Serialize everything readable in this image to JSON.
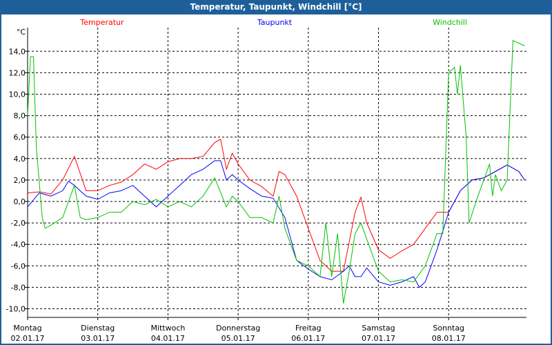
{
  "window_title": "Temperatur, Taupunkt, Windchill [°C]",
  "chart_data": {
    "type": "line",
    "title": "Temperatur, Taupunkt, Windchill [°C]",
    "ylabel": "°C",
    "xlabel": "",
    "ylim": [
      -11.2,
      16.4
    ],
    "xlim_hours": [
      0,
      172
    ],
    "grid": true,
    "yticks": [
      14,
      12,
      10,
      8,
      6,
      4,
      2,
      0,
      -2,
      -4,
      -6,
      -8,
      -10
    ],
    "ytick_labels": [
      "14,0",
      "12,0",
      "10,0",
      "8,0",
      "6,0",
      "4,0",
      "2,0",
      "0,0",
      "-2,0",
      "-4,0",
      "-6,0",
      "-8,0",
      "-10,0"
    ],
    "xticks": [
      {
        "day": "Montag",
        "date": "02.01.17"
      },
      {
        "day": "Dienstag",
        "date": "03.01.17"
      },
      {
        "day": "Mittwoch",
        "date": "04.01.17"
      },
      {
        "day": "Donnerstag",
        "date": "05.01.17"
      },
      {
        "day": "Freitag",
        "date": "06.01.17"
      },
      {
        "day": "Samstag",
        "date": "07.01.17"
      },
      {
        "day": "Sonntag",
        "date": "08.01.17"
      }
    ],
    "series": [
      {
        "name": "Temperatur",
        "color": "#ff0000",
        "legend": "top-left",
        "x": [
          0,
          4,
          8,
          12,
          16,
          20,
          24,
          28,
          32,
          36,
          40,
          44,
          48,
          52,
          56,
          60,
          64,
          66,
          68,
          70,
          72,
          76,
          80,
          84,
          86,
          88,
          92,
          96,
          100,
          104,
          108,
          112,
          114,
          116,
          120,
          124,
          128,
          132,
          136,
          140,
          144,
          148,
          152,
          156,
          160,
          164,
          168,
          170
        ],
        "y": [
          0.8,
          0.9,
          0.7,
          2.0,
          4.2,
          1.0,
          1.0,
          1.5,
          1.8,
          2.5,
          3.5,
          3.0,
          3.7,
          4.0,
          4.0,
          4.2,
          5.5,
          5.8,
          3.0,
          4.5,
          3.5,
          2.0,
          1.4,
          0.5,
          2.8,
          2.5,
          0.5,
          -2.5,
          -5.5,
          -6.5,
          -6.5,
          -1.0,
          0.4,
          -2.0,
          -4.5,
          -5.3,
          -4.6,
          -4.0,
          -2.5,
          -1.0,
          -1.0,
          1.0,
          2.0,
          2.2,
          2.8,
          3.4,
          2.8,
          2.0
        ]
      },
      {
        "name": "Taupunkt",
        "color": "#0000ff",
        "legend": "top-center",
        "x": [
          0,
          4,
          8,
          12,
          14,
          16,
          20,
          24,
          28,
          32,
          36,
          40,
          44,
          48,
          52,
          56,
          60,
          64,
          66,
          68,
          70,
          72,
          76,
          80,
          84,
          88,
          92,
          96,
          100,
          104,
          108,
          110,
          112,
          114,
          116,
          120,
          124,
          128,
          132,
          134,
          136,
          140,
          144,
          148,
          152,
          156,
          160,
          164,
          168,
          170
        ],
        "y": [
          -0.5,
          0.8,
          0.5,
          1.0,
          1.9,
          1.5,
          0.5,
          0.2,
          0.8,
          1.0,
          1.5,
          0.5,
          -0.5,
          0.5,
          1.5,
          2.5,
          3.0,
          3.8,
          3.8,
          2.0,
          2.5,
          2.0,
          1.2,
          0.5,
          0.3,
          -1.5,
          -5.5,
          -6.3,
          -7.0,
          -7.3,
          -6.5,
          -6.0,
          -7.0,
          -7.0,
          -6.2,
          -7.5,
          -7.8,
          -7.5,
          -7.0,
          -8.0,
          -7.5,
          -4.5,
          -1.0,
          1.0,
          2.0,
          2.2,
          2.8,
          3.4,
          2.8,
          2.0
        ]
      },
      {
        "name": "Windchill",
        "color": "#00c000",
        "legend": "top-right",
        "x": [
          0,
          1,
          2,
          3,
          5,
          6,
          8,
          12,
          16,
          18,
          20,
          24,
          28,
          32,
          36,
          40,
          44,
          48,
          52,
          56,
          60,
          64,
          68,
          70,
          72,
          76,
          80,
          84,
          86,
          88,
          92,
          96,
          100,
          102,
          104,
          106,
          108,
          110,
          112,
          114,
          116,
          120,
          124,
          128,
          132,
          136,
          140,
          142,
          144,
          146,
          147,
          148,
          150,
          151,
          154,
          156,
          158,
          159,
          160,
          162,
          164,
          166,
          170
        ],
        "y": [
          8.0,
          13.5,
          13.5,
          5.0,
          -1.5,
          -2.5,
          -2.2,
          -1.5,
          1.5,
          -1.5,
          -1.7,
          -1.5,
          -1.0,
          -1.0,
          0.0,
          -0.3,
          0.2,
          -0.5,
          0.0,
          -0.5,
          0.5,
          2.2,
          -0.5,
          0.5,
          0.0,
          -1.5,
          -1.5,
          -2.0,
          0.5,
          -2.5,
          -5.5,
          -6.0,
          -7.0,
          -2.0,
          -7.0,
          -3.0,
          -9.5,
          -6.5,
          -3.0,
          -2.0,
          -3.5,
          -6.5,
          -7.5,
          -7.3,
          -7.5,
          -6.0,
          -3.0,
          -3.0,
          12.0,
          12.5,
          10.0,
          12.7,
          6.0,
          -2.0,
          0.5,
          2.0,
          3.5,
          0.5,
          2.5,
          1.0,
          2.0,
          15.0,
          14.5
        ]
      }
    ]
  }
}
